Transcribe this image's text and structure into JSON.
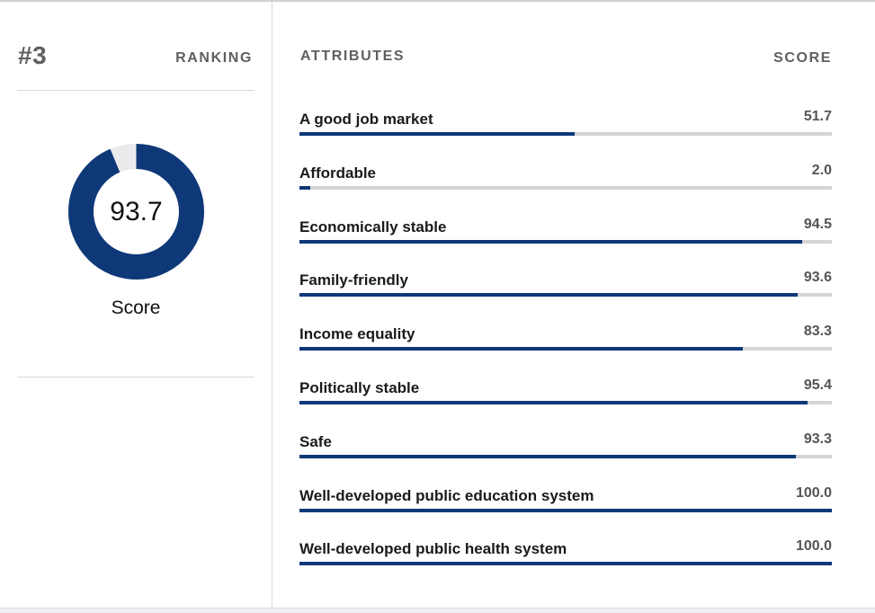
{
  "ranking": {
    "number": "#3",
    "label": "RANKING"
  },
  "score": {
    "value": "93.7",
    "fraction": 0.937,
    "caption": "Score"
  },
  "attributes": {
    "header": "ATTRIBUTES",
    "score_header": "SCORE",
    "items": [
      {
        "label": "A good job market",
        "score": "51.7",
        "fraction": 0.517
      },
      {
        "label": "Affordable",
        "score": "2.0",
        "fraction": 0.02
      },
      {
        "label": "Economically stable",
        "score": "94.5",
        "fraction": 0.945
      },
      {
        "label": "Family-friendly",
        "score": "93.6",
        "fraction": 0.936
      },
      {
        "label": "Income equality",
        "score": "83.3",
        "fraction": 0.833
      },
      {
        "label": "Politically stable",
        "score": "95.4",
        "fraction": 0.954
      },
      {
        "label": "Safe",
        "score": "93.3",
        "fraction": 0.933
      },
      {
        "label": "Well-developed public education system",
        "score": "100.0",
        "fraction": 1.0
      },
      {
        "label": "Well-developed public health system",
        "score": "100.0",
        "fraction": 1.0
      }
    ]
  },
  "colors": {
    "accent": "#0e3878",
    "track": "#d4d4d4",
    "donut_track": "#ebebed"
  }
}
